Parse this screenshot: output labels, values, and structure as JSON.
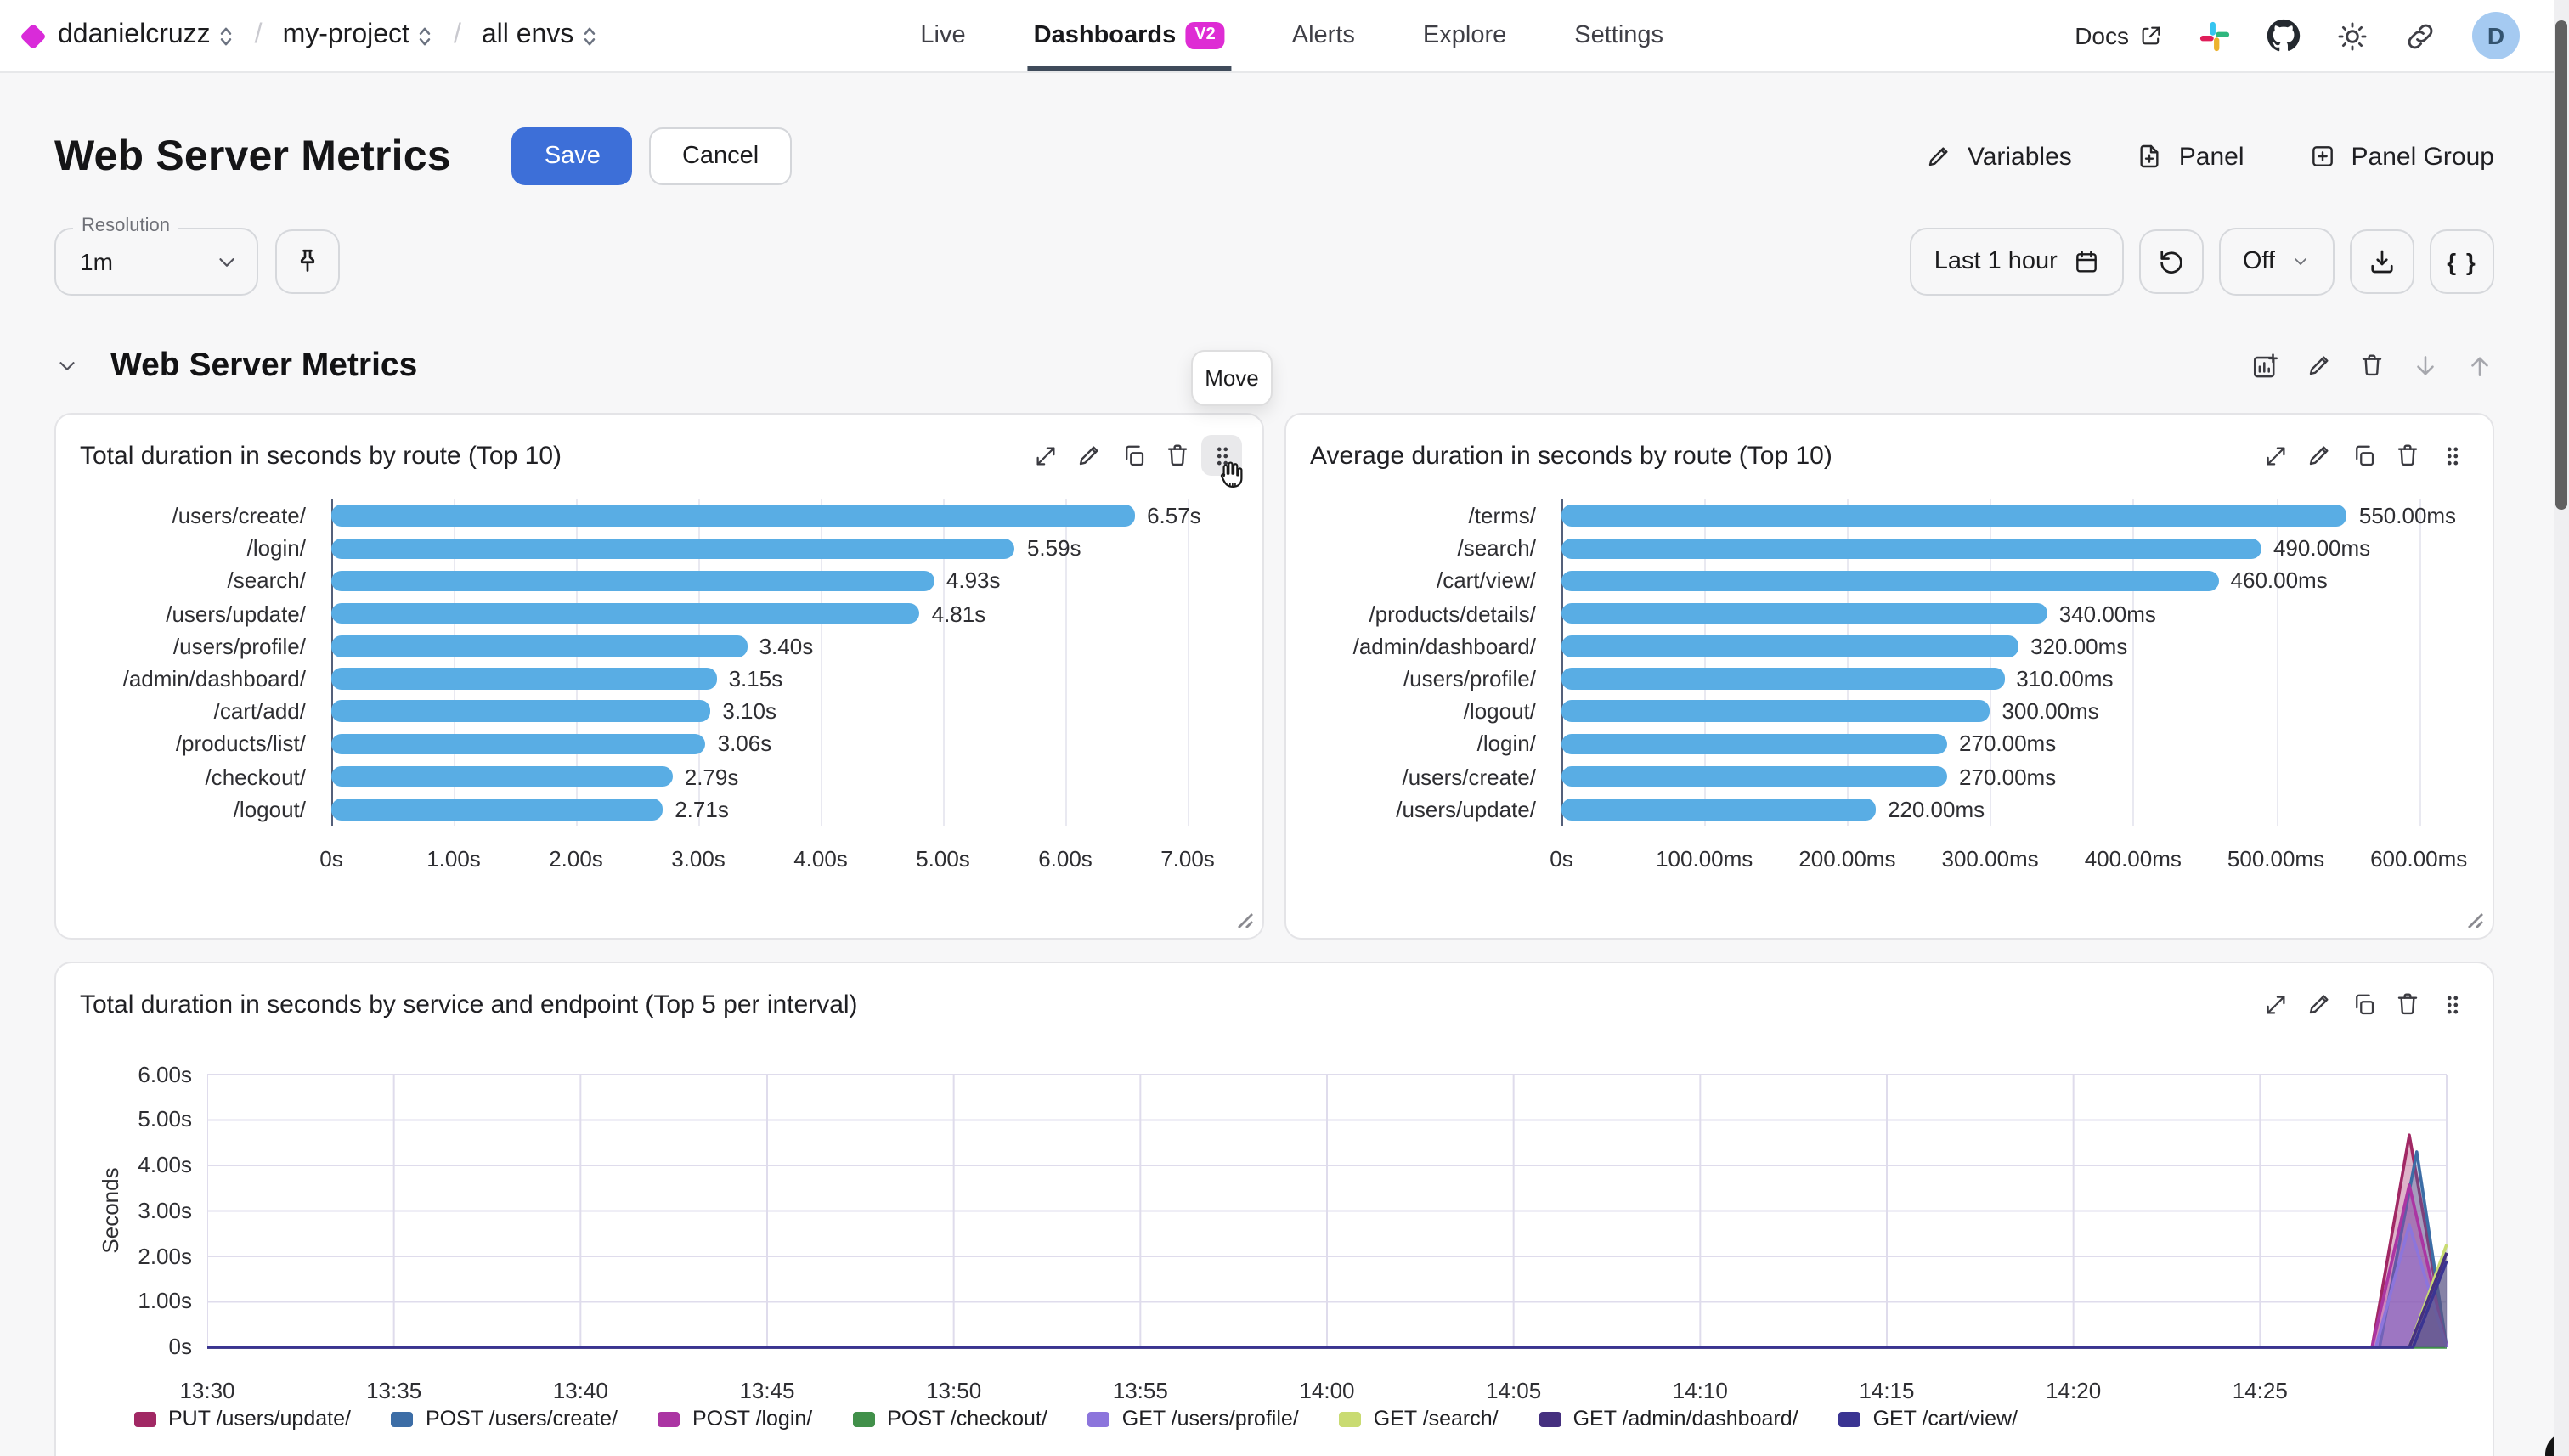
{
  "nav": {
    "breadcrumb": [
      {
        "label": "ddanielcruzz"
      },
      {
        "label": "my-project"
      },
      {
        "label": "all envs"
      }
    ],
    "tabs": [
      {
        "label": "Live",
        "active": false
      },
      {
        "label": "Dashboards",
        "badge": "V2",
        "active": true
      },
      {
        "label": "Alerts",
        "active": false
      },
      {
        "label": "Explore",
        "active": false
      },
      {
        "label": "Settings",
        "active": false
      }
    ],
    "docs_label": "Docs",
    "avatar_initial": "D",
    "icons": [
      "external-link-icon",
      "slack-icon",
      "github-icon",
      "sun-icon",
      "link-icon"
    ]
  },
  "header": {
    "title": "Web Server Metrics",
    "save_label": "Save",
    "cancel_label": "Cancel",
    "actions": [
      {
        "label": "Variables",
        "icon": "pencil-icon"
      },
      {
        "label": "Panel",
        "icon": "file-plus-icon"
      },
      {
        "label": "Panel Group",
        "icon": "square-plus-icon"
      }
    ]
  },
  "controls": {
    "resolution_label": "Resolution",
    "resolution_value": "1m",
    "pin_icon": "pin-icon",
    "time_range": "Last 1 hour",
    "refresh_icon": "refresh-icon",
    "auto_refresh_value": "Off",
    "download_icon": "download-icon",
    "braces_label": "{ }"
  },
  "section": {
    "title": "Web Server Metrics",
    "move_tooltip": "Move",
    "icons": [
      "add-chart-icon",
      "pencil-icon",
      "trash-icon",
      "arrow-down-icon",
      "arrow-up-icon"
    ]
  },
  "panel_icons": [
    "expand-icon",
    "pencil-icon",
    "copy-icon",
    "trash-icon",
    "grip-icon"
  ],
  "colors": {
    "accent_blue": "#3d6fd8",
    "bar_blue": "#59ade4",
    "badge_magenta": "#de2cd4",
    "diamond_magenta": "#d92bd9",
    "avatar_bg": "#a5caf1",
    "avatar_text": "#33536f",
    "active_tab_underline": "#3f4b5b",
    "grid_line": "#dfdcec"
  },
  "chart_data": [
    {
      "type": "bar",
      "orientation": "horizontal",
      "title": "Total duration in seconds by route (Top 10)",
      "categories": [
        "/users/create/",
        "/login/",
        "/search/",
        "/users/update/",
        "/users/profile/",
        "/admin/dashboard/",
        "/cart/add/",
        "/products/list/",
        "/checkout/",
        "/logout/"
      ],
      "values": [
        6.57,
        5.59,
        4.93,
        4.81,
        3.4,
        3.15,
        3.1,
        3.06,
        2.79,
        2.71
      ],
      "value_labels": [
        "6.57s",
        "5.59s",
        "4.93s",
        "4.81s",
        "3.40s",
        "3.15s",
        "3.10s",
        "3.06s",
        "2.79s",
        "2.71s"
      ],
      "x_ticks": [
        "0s",
        "1.00s",
        "2.00s",
        "3.00s",
        "4.00s",
        "5.00s",
        "6.00s",
        "7.00s"
      ],
      "x_tick_values": [
        0,
        1,
        2,
        3,
        4,
        5,
        6,
        7
      ],
      "xlim": [
        0,
        7.5
      ],
      "unit": "s"
    },
    {
      "type": "bar",
      "orientation": "horizontal",
      "title": "Average duration in seconds by route (Top 10)",
      "categories": [
        "/terms/",
        "/search/",
        "/cart/view/",
        "/products/details/",
        "/admin/dashboard/",
        "/users/profile/",
        "/logout/",
        "/login/",
        "/users/create/",
        "/users/update/"
      ],
      "values": [
        550,
        490,
        460,
        340,
        320,
        310,
        300,
        270,
        270,
        220
      ],
      "value_labels": [
        "550.00ms",
        "490.00ms",
        "460.00ms",
        "340.00ms",
        "320.00ms",
        "310.00ms",
        "300.00ms",
        "270.00ms",
        "270.00ms",
        "220.00ms"
      ],
      "x_ticks": [
        "0s",
        "100.00ms",
        "200.00ms",
        "300.00ms",
        "400.00ms",
        "500.00ms",
        "600.00ms"
      ],
      "x_tick_values": [
        0,
        100,
        200,
        300,
        400,
        500,
        600
      ],
      "xlim": [
        0,
        642
      ],
      "unit": "ms"
    },
    {
      "type": "area",
      "title": "Total duration in seconds by service and endpoint (Top 5 per interval)",
      "ylabel": "Seconds",
      "y_ticks": [
        "0s",
        "1.00s",
        "2.00s",
        "3.00s",
        "4.00s",
        "5.00s",
        "6.00s"
      ],
      "y_tick_values": [
        0,
        1,
        2,
        3,
        4,
        5,
        6
      ],
      "ylim": [
        0,
        6
      ],
      "x_ticks": [
        "13:30",
        "13:35",
        "13:40",
        "13:45",
        "13:50",
        "13:55",
        "14:00",
        "14:05",
        "14:10",
        "14:15",
        "14:20",
        "14:25"
      ],
      "x_tick_minutes": [
        0,
        5,
        10,
        15,
        20,
        25,
        30,
        35,
        40,
        45,
        50,
        55
      ],
      "x_domain_minutes": [
        0,
        60
      ],
      "grid": true,
      "legend_position": "bottom",
      "series": [
        {
          "name": "PUT /users/update/",
          "color": "#a12864",
          "points": [
            [
              0,
              0
            ],
            [
              58,
              0
            ],
            [
              59,
              4.67
            ],
            [
              60,
              0
            ]
          ]
        },
        {
          "name": "POST /users/create/",
          "color": "#3c6da6",
          "points": [
            [
              0,
              0
            ],
            [
              58.2,
              0
            ],
            [
              59.2,
              4.3
            ],
            [
              60,
              0
            ]
          ]
        },
        {
          "name": "POST /login/",
          "color": "#ab35a3",
          "points": [
            [
              0,
              0
            ],
            [
              58,
              0
            ],
            [
              59,
              3.57
            ],
            [
              60,
              0
            ]
          ]
        },
        {
          "name": "POST /checkout/",
          "color": "#41904a",
          "points": [
            [
              0,
              0
            ],
            [
              60,
              0
            ]
          ]
        },
        {
          "name": "GET /users/profile/",
          "color": "#8c75dc",
          "points": [
            [
              0,
              0
            ],
            [
              58.1,
              0
            ],
            [
              59,
              2.69
            ],
            [
              60,
              0
            ]
          ]
        },
        {
          "name": "GET /search/",
          "color": "#c9db72",
          "points": [
            [
              0,
              0
            ],
            [
              59,
              0
            ],
            [
              60,
              2.26
            ]
          ]
        },
        {
          "name": "GET /admin/dashboard/",
          "color": "#45307f",
          "points": [
            [
              0,
              0
            ],
            [
              59,
              0
            ],
            [
              60,
              2.08
            ]
          ]
        },
        {
          "name": "GET /cart/view/",
          "color": "#3a3492",
          "points": [
            [
              0,
              0
            ],
            [
              59.1,
              0
            ],
            [
              60,
              1.9
            ]
          ]
        }
      ]
    }
  ]
}
